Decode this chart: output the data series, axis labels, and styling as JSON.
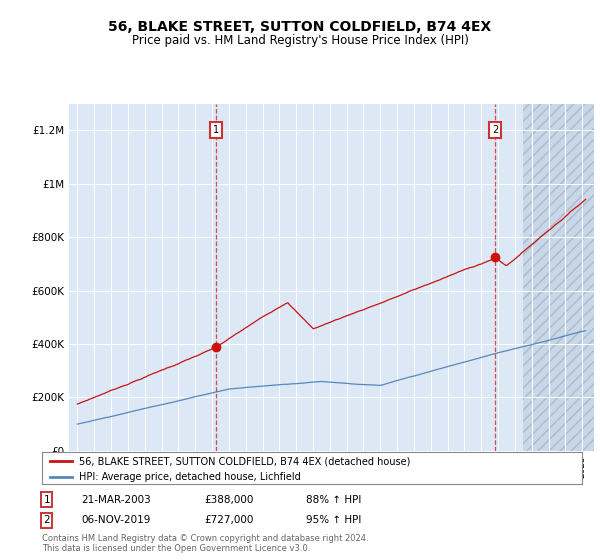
{
  "title": "56, BLAKE STREET, SUTTON COLDFIELD, B74 4EX",
  "subtitle": "Price paid vs. HM Land Registry's House Price Index (HPI)",
  "title_fontsize": 10,
  "subtitle_fontsize": 8.5,
  "background_color": "#ffffff",
  "plot_bg_color": "#dce8f5",
  "legend_label_red": "56, BLAKE STREET, SUTTON COLDFIELD, B74 4EX (detached house)",
  "legend_label_blue": "HPI: Average price, detached house, Lichfield",
  "transaction1": {
    "date_x": 2003.22,
    "price": 388000,
    "label": "1"
  },
  "transaction2": {
    "date_x": 2019.84,
    "price": 727000,
    "label": "2"
  },
  "footer_line1": "Contains HM Land Registry data © Crown copyright and database right 2024.",
  "footer_line2": "This data is licensed under the Open Government Licence v3.0.",
  "ylim": [
    0,
    1300000
  ],
  "xlim": [
    1994.5,
    2025.7
  ],
  "red_color": "#cc1111",
  "blue_color": "#5588bb",
  "yticks": [
    0,
    200000,
    400000,
    600000,
    800000,
    1000000,
    1200000
  ],
  "ylabels": [
    "£0",
    "£200K",
    "£400K",
    "£600K",
    "£800K",
    "£1M",
    "£1.2M"
  ]
}
